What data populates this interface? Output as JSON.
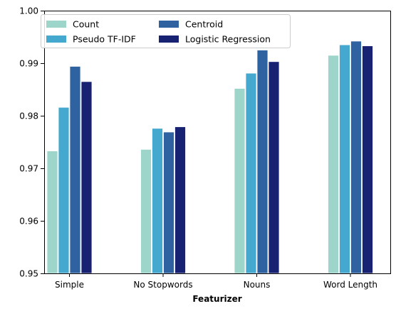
{
  "chart_data": {
    "type": "bar",
    "title": "",
    "xlabel": "Featurizer",
    "ylabel": "",
    "categories": [
      "Simple",
      "No Stopwords",
      "Nouns",
      "Word Length"
    ],
    "series": [
      {
        "name": "Count",
        "color": "#9dd5cb",
        "values": [
          0.9733,
          0.9736,
          0.9852,
          0.9915
        ]
      },
      {
        "name": "Pseudo TF-IDF",
        "color": "#45a8cf",
        "values": [
          0.9816,
          0.9776,
          0.9881,
          0.9935
        ]
      },
      {
        "name": "Centroid",
        "color": "#2e62a1",
        "values": [
          0.9894,
          0.9769,
          0.9925,
          0.9942
        ]
      },
      {
        "name": "Logistic Regression",
        "color": "#172272",
        "values": [
          0.9865,
          0.9779,
          0.9903,
          0.9933
        ]
      }
    ],
    "ylim": [
      0.95,
      1.0
    ],
    "yticks": [
      0.95,
      0.96,
      0.97,
      0.98,
      0.99,
      1.0
    ],
    "ytick_labels": [
      "0.95",
      "0.96",
      "0.97",
      "0.98",
      "0.99",
      "1.00"
    ],
    "grid": false,
    "legend": {
      "placement": "top-left",
      "columns": 2
    }
  }
}
